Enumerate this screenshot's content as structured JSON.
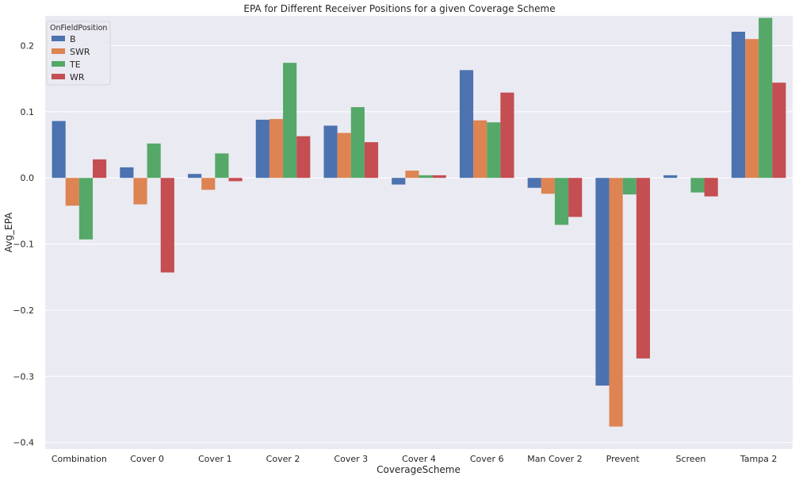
{
  "chart_data": {
    "type": "bar",
    "title": "EPA for Different Receiver Positions for a given Coverage Scheme",
    "xlabel": "CoverageScheme",
    "ylabel": "Avg_EPA",
    "categories": [
      "Combination",
      "Cover 0",
      "Cover 1",
      "Cover 2",
      "Cover 3",
      "Cover 4",
      "Cover 6",
      "Man Cover 2",
      "Prevent",
      "Screen",
      "Tampa 2"
    ],
    "legend_title": "OnFieldPosition",
    "legend_position": "top-left",
    "grid": true,
    "ylim": [
      -0.41,
      0.245
    ],
    "yticks": [
      -0.4,
      -0.3,
      -0.2,
      -0.1,
      0.0,
      0.1,
      0.2
    ],
    "ytick_labels": [
      "−0.4",
      "−0.3",
      "−0.2",
      "−0.1",
      "0.0",
      "0.1",
      "0.2"
    ],
    "series": [
      {
        "name": "B",
        "color": "#4c72b0",
        "values": [
          0.086,
          0.016,
          0.006,
          0.088,
          0.079,
          -0.01,
          0.163,
          -0.015,
          -0.314,
          0.004,
          0.221
        ]
      },
      {
        "name": "SWR",
        "color": "#dd8452",
        "values": [
          -0.042,
          -0.04,
          -0.018,
          0.089,
          0.068,
          0.011,
          0.087,
          -0.024,
          -0.376,
          0.0,
          0.21
        ]
      },
      {
        "name": "TE",
        "color": "#55a868",
        "values": [
          -0.093,
          0.052,
          0.037,
          0.174,
          0.107,
          0.004,
          0.084,
          -0.071,
          -0.025,
          -0.022,
          0.242
        ]
      },
      {
        "name": "WR",
        "color": "#c44e52",
        "values": [
          0.028,
          -0.143,
          -0.005,
          0.063,
          0.054,
          0.004,
          0.129,
          -0.059,
          -0.273,
          -0.028,
          0.144
        ]
      }
    ],
    "plot_background": "#eaeaf2",
    "grid_color": "#ffffff"
  }
}
